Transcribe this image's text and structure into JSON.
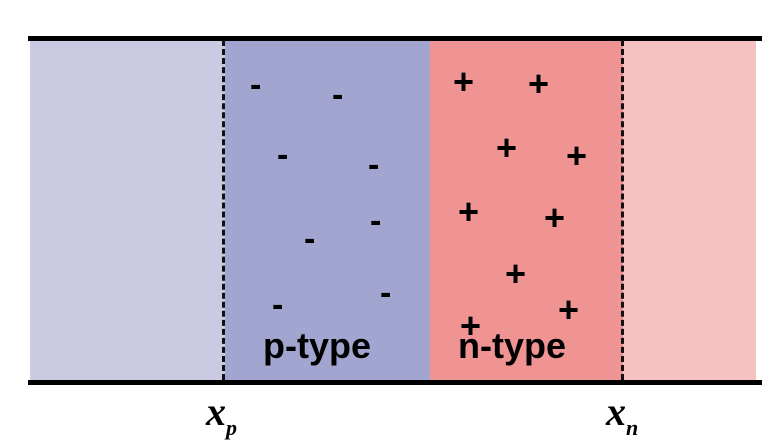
{
  "regions": {
    "p_label": "p-type",
    "n_label": "n-type"
  },
  "positions": {
    "xp_main": "x",
    "xp_sub": "p",
    "xn_main": "x",
    "xn_sub": "n"
  },
  "charges": {
    "minus_symbol": "-",
    "plus_symbol": "+",
    "minus_count": 8,
    "plus_count": 10
  },
  "colors": {
    "p_neutral": "#cacae3",
    "p_depletion": "#a2a5d0",
    "n_depletion": "#ef9493",
    "n_neutral": "#f5c1c1"
  }
}
